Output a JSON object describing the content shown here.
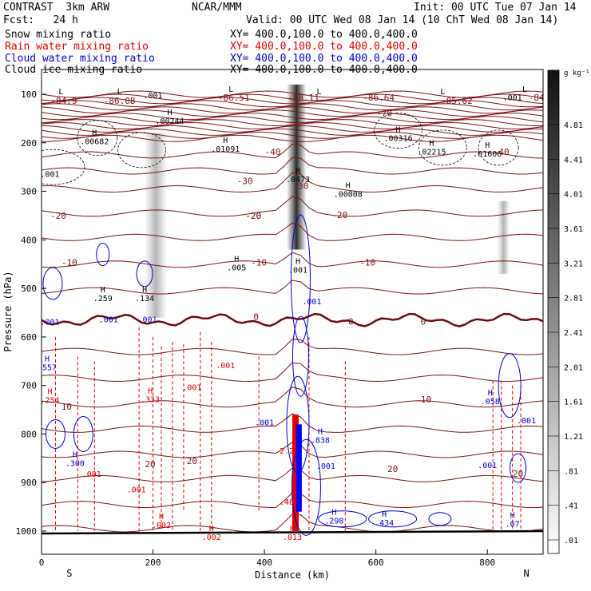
{
  "header": {
    "model": "CONTRAST  3km ARW",
    "forecast": "Fcst:   24 h",
    "center": "NCAR/MMM",
    "init": "Init: 00 UTC Tue 07 Jan 14",
    "valid": "Valid: 00 UTC Wed 08 Jan 14 (10 ChT Wed 08 Jan 14)"
  },
  "fields": [
    {
      "label": "Snow mixing ratio",
      "xy": "XY= 400.0,100.0 to 400.0,400.0",
      "color": "#000000"
    },
    {
      "label": "Rain water mixing ratio",
      "xy": "XY= 400.0,100.0 to 400.0,400.0",
      "color": "#e00000"
    },
    {
      "label": "Cloud water mixing ratio",
      "xy": "XY= 400.0,100.0 to 400.0,400.0",
      "color": "#0000d0"
    },
    {
      "label": "Cloud ice mixing ratio",
      "xy": "XY= 400.0,100.0 to 400.0,400.0",
      "color": "#000000"
    }
  ],
  "chart_data": {
    "type": "cross-section contour",
    "xlabel": "Distance (km)",
    "ylabel": "Pressure (hPa)",
    "xlim": [
      0,
      900
    ],
    "ylim": [
      1050,
      50
    ],
    "x_ticks": [
      "0",
      "200",
      "400",
      "600",
      "800"
    ],
    "x_tick_values": [
      0,
      200,
      400,
      600,
      800
    ],
    "y_ticks": [
      "100",
      "200",
      "300",
      "400",
      "500",
      "600",
      "700",
      "800",
      "900",
      "1000"
    ],
    "y_tick_values": [
      100,
      200,
      300,
      400,
      500,
      600,
      700,
      800,
      900,
      1000
    ],
    "end_labels": {
      "left": "S",
      "right": "N"
    },
    "colorbar": {
      "unit": "g kg⁻¹",
      "labels": [
        "4.81",
        "4.41",
        "4.01",
        "3.61",
        "3.21",
        "2.81",
        "2.41",
        "2.01",
        "1.61",
        "1.21",
        ".81",
        ".41",
        ".01"
      ]
    },
    "temperature_labels": [
      {
        "text": "-84.9",
        "x": 40,
        "p": 120
      },
      {
        "text": "-86.08",
        "x": 140,
        "p": 120
      },
      {
        "text": "-86.51",
        "x": 345,
        "p": 113
      },
      {
        "text": "-88.11",
        "x": 470,
        "p": 113
      },
      {
        "text": "-86.64",
        "x": 605,
        "p": 113
      },
      {
        "text": "-85.62",
        "x": 745,
        "p": 120
      },
      {
        "text": "-84",
        "x": 888,
        "p": 113
      },
      {
        "text": "-70",
        "x": 615,
        "p": 145
      },
      {
        "text": "-40",
        "x": 415,
        "p": 225
      },
      {
        "text": "-40",
        "x": 825,
        "p": 225
      },
      {
        "text": "-30",
        "x": 365,
        "p": 285
      },
      {
        "text": "-30",
        "x": 465,
        "p": 295
      },
      {
        "text": "-20",
        "x": 30,
        "p": 357
      },
      {
        "text": "-20",
        "x": 380,
        "p": 357
      },
      {
        "text": "-20",
        "x": 535,
        "p": 355
      },
      {
        "text": "-20",
        "x": 380,
        "p": 357
      },
      {
        "text": "-10",
        "x": 50,
        "p": 453
      },
      {
        "text": "-10",
        "x": 390,
        "p": 453
      },
      {
        "text": "-10",
        "x": 585,
        "p": 453
      },
      {
        "text": "0",
        "x": 385,
        "p": 565
      },
      {
        "text": "0",
        "x": 555,
        "p": 575
      },
      {
        "text": "0",
        "x": 685,
        "p": 575
      },
      {
        "text": "10",
        "x": 45,
        "p": 750
      },
      {
        "text": "10",
        "x": 690,
        "p": 735
      },
      {
        "text": "20",
        "x": 195,
        "p": 868
      },
      {
        "text": "20",
        "x": 270,
        "p": 862
      },
      {
        "text": "20",
        "x": 630,
        "p": 878
      },
      {
        "text": "20",
        "x": 855,
        "p": 888
      }
    ],
    "extrema_labels": [
      {
        "type": "L",
        "x": 35,
        "p": 100,
        "value": ""
      },
      {
        "type": "L",
        "x": 140,
        "p": 100,
        "value": ""
      },
      {
        "type": "L",
        "x": 340,
        "p": 95,
        "value": ""
      },
      {
        "type": "L",
        "x": 498,
        "p": 100,
        "value": ""
      },
      {
        "type": "L",
        "x": 720,
        "p": 100,
        "value": ""
      },
      {
        "type": "L",
        "x": 867,
        "p": 95,
        "value": ""
      },
      {
        "type": "H",
        "x": 230,
        "p": 143,
        "value": ".00244"
      },
      {
        "type": "H",
        "x": 95,
        "p": 185,
        "value": ".00682"
      },
      {
        "type": "H",
        "x": 330,
        "p": 200,
        "value": ".01091"
      },
      {
        "type": "H",
        "x": 640,
        "p": 178,
        "value": ".00316"
      },
      {
        "type": "H",
        "x": 700,
        "p": 206,
        "value": ".02215"
      },
      {
        "type": "H",
        "x": 800,
        "p": 210,
        "value": ".01606"
      },
      {
        "type": "H",
        "x": 460,
        "p": 263,
        "value": ".0473"
      },
      {
        "type": "H",
        "x": 550,
        "p": 293,
        "value": ".00008"
      },
      {
        "type": "H",
        "x": 350,
        "p": 445,
        "value": ".005"
      },
      {
        "type": "H",
        "x": 460,
        "p": 450,
        "value": ".001"
      },
      {
        "type": "H",
        "x": 110,
        "p": 508,
        "value": ".259"
      },
      {
        "type": "H",
        "x": 185,
        "p": 508,
        "value": ".134"
      },
      {
        "type": "H",
        "x": 10,
        "p": 650,
        "value": ".557"
      },
      {
        "type": "H",
        "x": 15,
        "p": 718,
        "value": ".254"
      },
      {
        "type": "H",
        "x": 195,
        "p": 716,
        "value": ".333"
      },
      {
        "type": "H",
        "x": 60,
        "p": 848,
        "value": ".300"
      },
      {
        "type": "H",
        "x": 525,
        "p": 966,
        "value": ".298"
      },
      {
        "type": "H",
        "x": 615,
        "p": 970,
        "value": ".434"
      },
      {
        "type": "H",
        "x": 845,
        "p": 973,
        "value": ".07"
      },
      {
        "type": "H",
        "x": 215,
        "p": 975,
        "value": ".002"
      },
      {
        "type": "H",
        "x": 305,
        "p": 1000,
        "value": ".002"
      },
      {
        "type": "H",
        "x": 450,
        "p": 1000,
        "value": ".013"
      },
      {
        "type": "H",
        "x": 500,
        "p": 800,
        "value": ".838"
      },
      {
        "type": "H",
        "x": 805,
        "p": 720,
        "value": ".058"
      }
    ],
    "mixing_ratio_labels": [
      {
        "text": ".001",
        "x": 200,
        "p": 108,
        "color": "#000000"
      },
      {
        "text": ".001",
        "x": 845,
        "p": 112,
        "color": "#000000"
      },
      {
        "text": ".001",
        "x": 15,
        "p": 270,
        "color": "#000000"
      },
      {
        "text": ".001",
        "x": 15,
        "p": 575,
        "color": "#0000d0"
      },
      {
        "text": ".001",
        "x": 120,
        "p": 570,
        "color": "#0000d0"
      },
      {
        "text": ".001",
        "x": 190,
        "p": 570,
        "color": "#0000d0"
      },
      {
        "text": ".001",
        "x": 485,
        "p": 533,
        "color": "#0000d0"
      },
      {
        "text": ".001",
        "x": 400,
        "p": 782,
        "color": "#0000d0"
      },
      {
        "text": ".001",
        "x": 510,
        "p": 872,
        "color": "#0000d0"
      },
      {
        "text": ".001",
        "x": 870,
        "p": 778,
        "color": "#0000d0"
      },
      {
        "text": ".001",
        "x": 800,
        "p": 870,
        "color": "#0000d0"
      },
      {
        "text": ".001",
        "x": 330,
        "p": 664,
        "color": "#e00000"
      },
      {
        "text": ".001",
        "x": 270,
        "p": 710,
        "color": "#e00000"
      },
      {
        "text": ".001",
        "x": 90,
        "p": 888,
        "color": "#e00000"
      },
      {
        "text": ".001",
        "x": 170,
        "p": 920,
        "color": "#e00000"
      },
      {
        "text": ".40",
        "x": 440,
        "p": 946,
        "color": "#e00000"
      },
      {
        "text": "2.2",
        "x": 440,
        "p": 840,
        "color": "#e00000"
      }
    ]
  }
}
